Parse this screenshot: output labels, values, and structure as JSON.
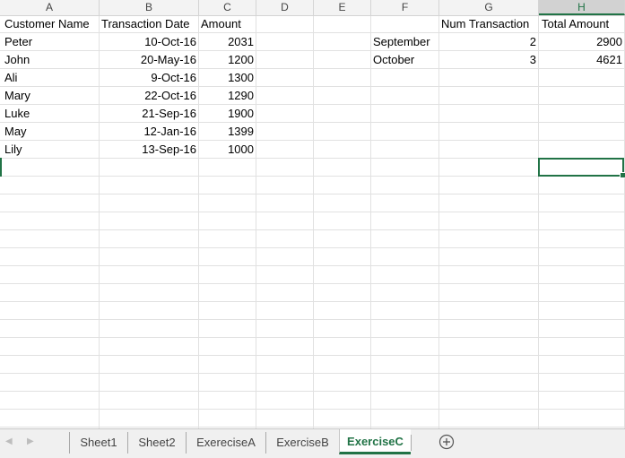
{
  "columns": [
    {
      "letter": "A",
      "col": 0
    },
    {
      "letter": "B",
      "col": 1
    },
    {
      "letter": "C",
      "col": 2
    },
    {
      "letter": "D",
      "col": 3
    },
    {
      "letter": "E",
      "col": 4
    },
    {
      "letter": "F",
      "col": 5
    },
    {
      "letter": "G",
      "col": 6
    },
    {
      "letter": "H",
      "col": 7
    }
  ],
  "selected_cell": "H9",
  "cells": {
    "r1": {
      "A": "Customer Name",
      "B": "Transaction Date",
      "C": "Amount",
      "G": "Num Transaction",
      "H": "Total Amount"
    },
    "r2": {
      "A": "Peter",
      "B": "10-Oct-16",
      "C": "2031",
      "F": "September",
      "G": "2",
      "H": "2900"
    },
    "r3": {
      "A": "John",
      "B": "20-May-16",
      "C": "1200",
      "F": "October",
      "G": "3",
      "H": "4621"
    },
    "r4": {
      "A": "Ali",
      "B": "9-Oct-16",
      "C": "1300"
    },
    "r5": {
      "A": "Mary",
      "B": "22-Oct-16",
      "C": "1290"
    },
    "r6": {
      "A": "Luke",
      "B": "21-Sep-16",
      "C": "1900"
    },
    "r7": {
      "A": "May",
      "B": "12-Jan-16",
      "C": "1399"
    },
    "r8": {
      "A": "Lily",
      "B": "13-Sep-16",
      "C": "1000"
    }
  },
  "tabs": [
    "Sheet1",
    "Sheet2",
    "ExereciseA",
    "ExerciseB",
    "ExerciseC"
  ],
  "active_tab": "ExerciseC",
  "colors": {
    "accent": "#217346",
    "grid": "#e1e1e1",
    "header_bg": "#f3f3f3"
  }
}
